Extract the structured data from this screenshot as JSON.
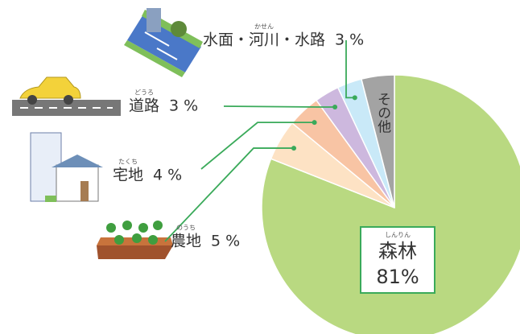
{
  "chart_data": {
    "type": "pie",
    "categories": [
      "森林",
      "農地",
      "宅地",
      "道路",
      "水面・河川・水路",
      "その他"
    ],
    "readings": [
      "しんりん",
      "のうち",
      "たくち",
      "どうろ",
      "かせん",
      null
    ],
    "values": [
      81,
      5,
      4,
      3,
      3,
      4
    ],
    "value_labels": [
      "81%",
      "5 %",
      "4 %",
      "3 %",
      "3 %",
      null
    ],
    "colors": [
      "#b9d981",
      "#fde2c4",
      "#f8c4a4",
      "#cdb8de",
      "#c9e9f8",
      "#a3a3a3"
    ]
  }
}
